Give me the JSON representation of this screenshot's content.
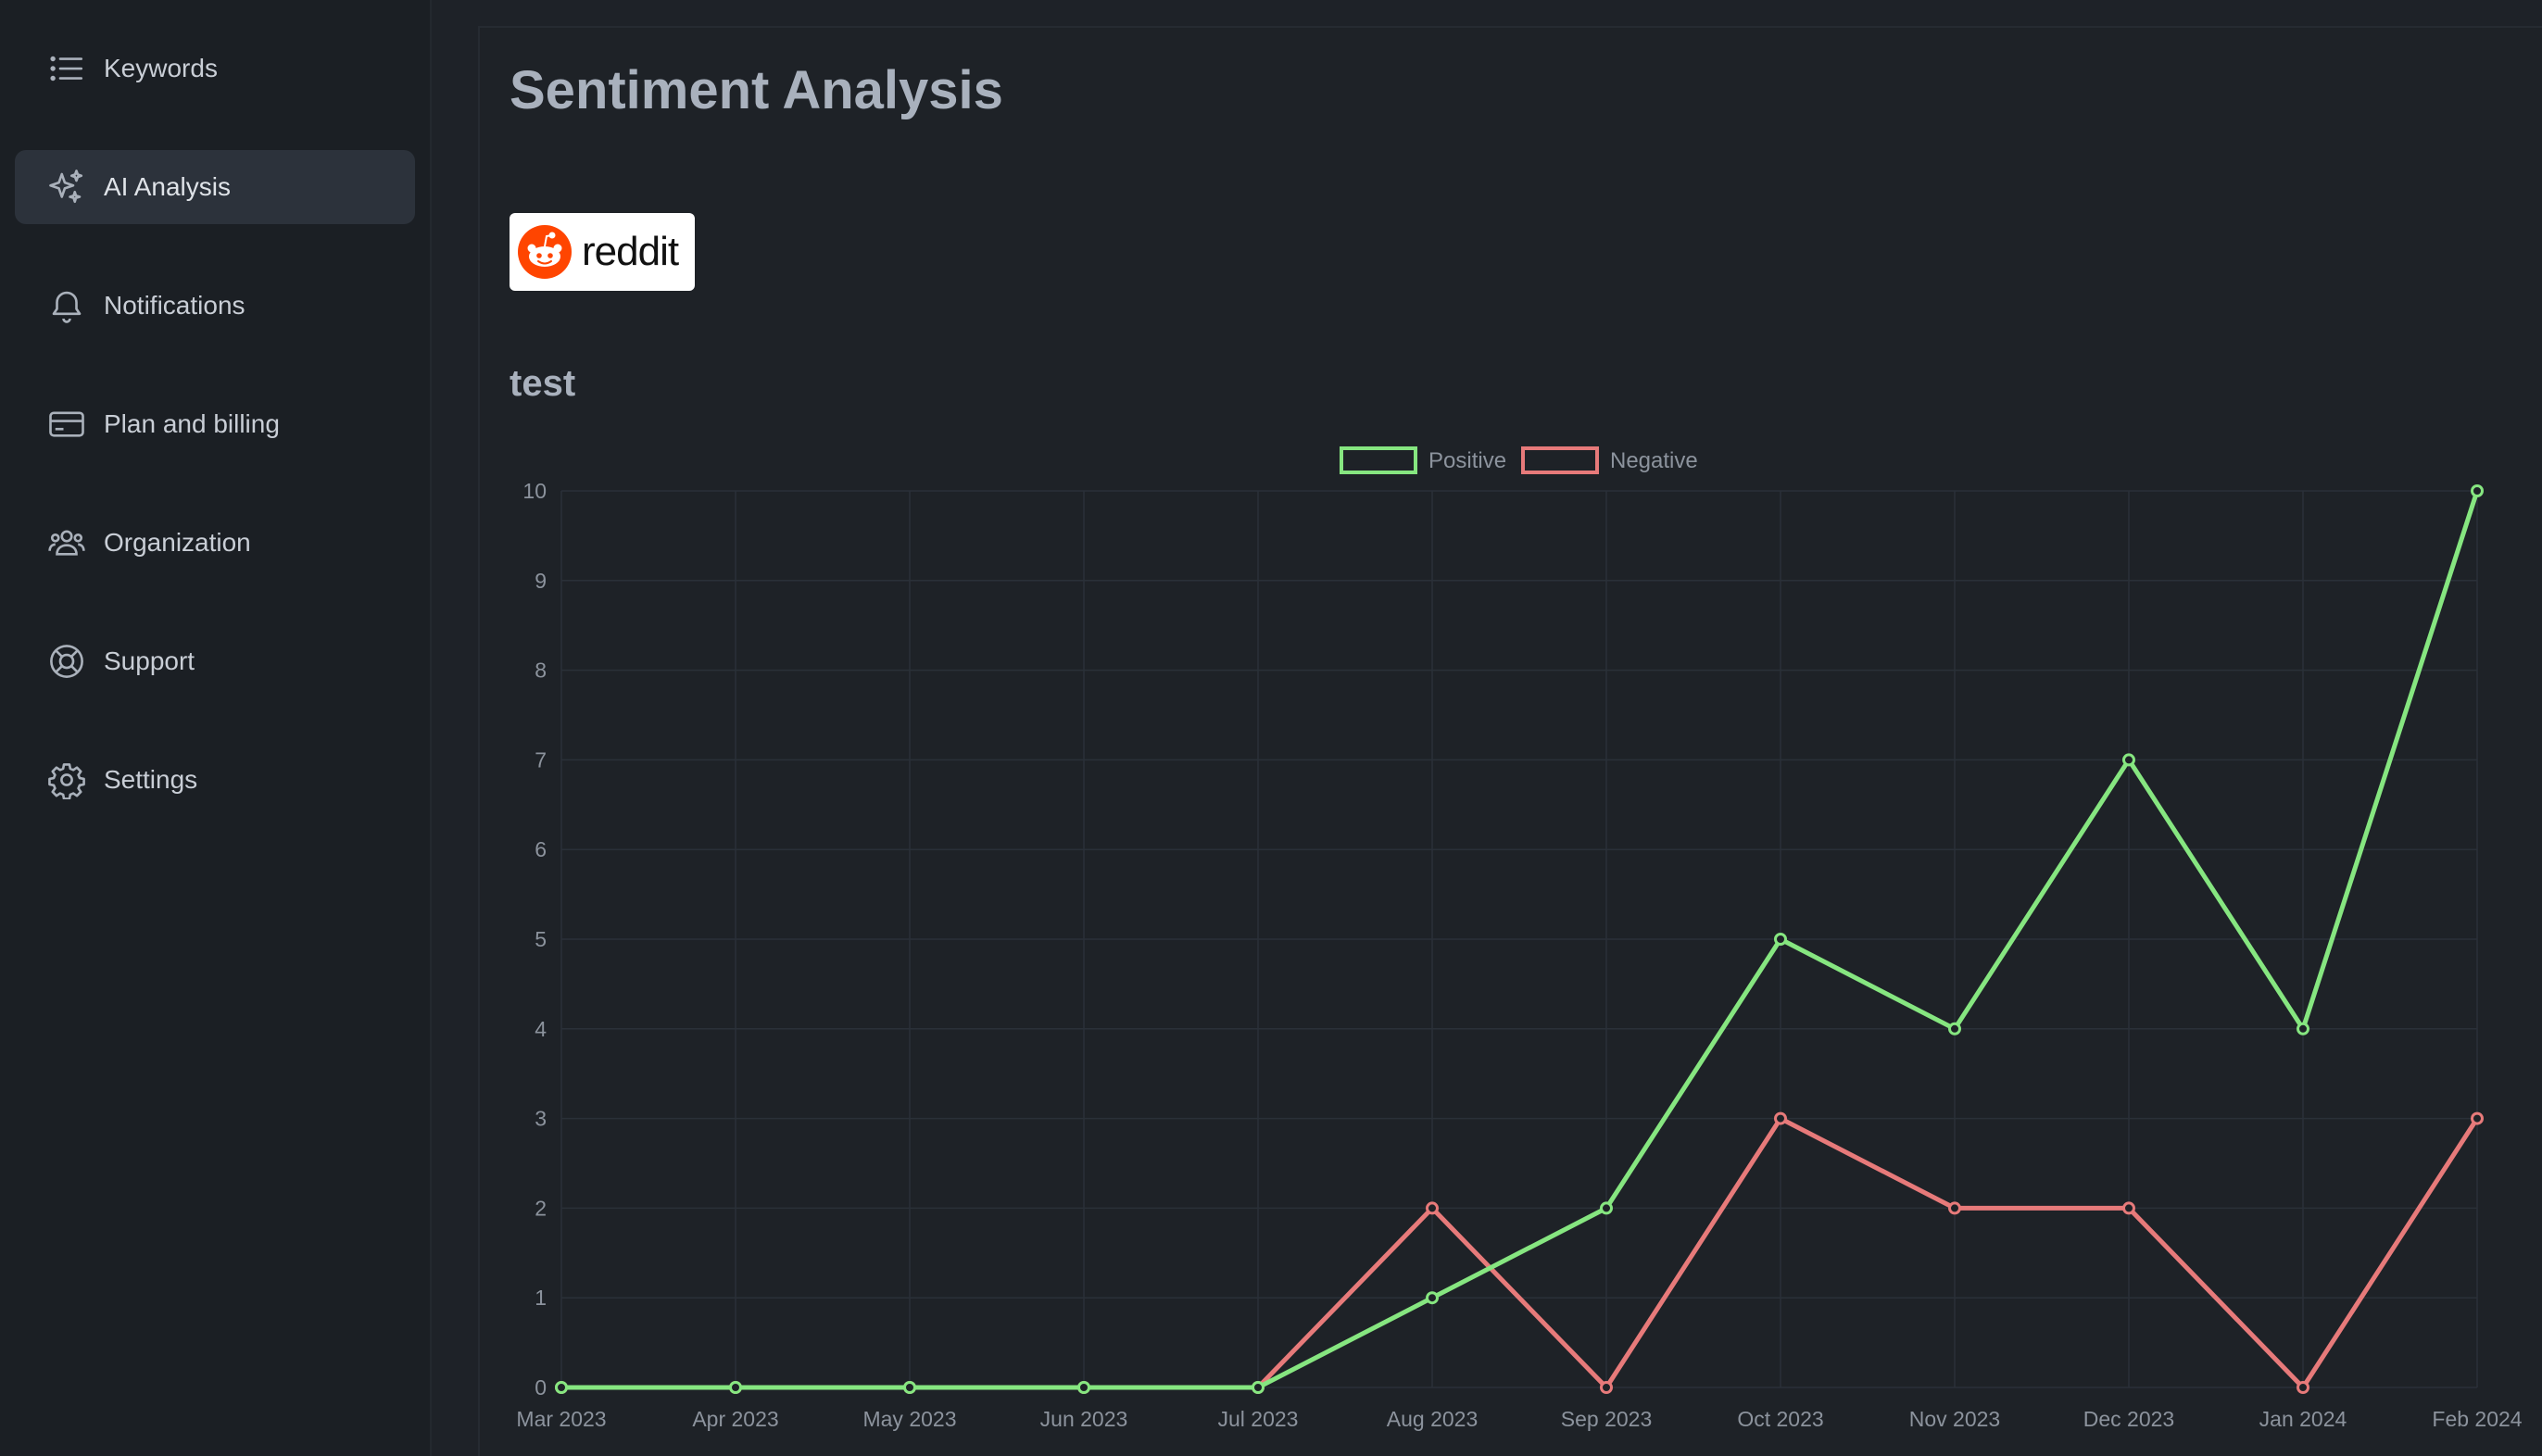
{
  "sidebar": {
    "items": [
      {
        "label": "Keywords",
        "icon": "list-icon"
      },
      {
        "label": "AI Analysis",
        "icon": "sparkles-icon",
        "active": true
      },
      {
        "label": "Notifications",
        "icon": "bell-icon"
      },
      {
        "label": "Plan and billing",
        "icon": "credit-card-icon"
      },
      {
        "label": "Organization",
        "icon": "users-icon"
      },
      {
        "label": "Support",
        "icon": "lifebuoy-icon"
      },
      {
        "label": "Settings",
        "icon": "gear-icon"
      }
    ]
  },
  "main": {
    "title": "Sentiment Analysis",
    "source": {
      "logo_text": "reddit",
      "brand_color": "#ff4500"
    },
    "keyword": "test"
  },
  "colors": {
    "positive": "#86e680",
    "negative": "#e77a7a",
    "grid": "#2a3038",
    "text": "#8c939d"
  },
  "chart_data": {
    "type": "line",
    "categories": [
      "Mar 2023",
      "Apr 2023",
      "May 2023",
      "Jun 2023",
      "Jul 2023",
      "Aug 2023",
      "Sep 2023",
      "Oct 2023",
      "Nov 2023",
      "Dec 2023",
      "Jan 2024",
      "Feb 2024"
    ],
    "series": [
      {
        "name": "Positive",
        "values": [
          0,
          0,
          0,
          0,
          0,
          1,
          2,
          5,
          4,
          7,
          4,
          10
        ]
      },
      {
        "name": "Negative",
        "values": [
          0,
          0,
          0,
          0,
          0,
          2,
          0,
          3,
          2,
          2,
          0,
          3
        ]
      }
    ],
    "yticks": [
      "0",
      "1",
      "2",
      "3",
      "4",
      "5",
      "6",
      "7",
      "8",
      "9",
      "10"
    ],
    "ylim": [
      0,
      10
    ],
    "grid": true,
    "legend": "top-center"
  }
}
